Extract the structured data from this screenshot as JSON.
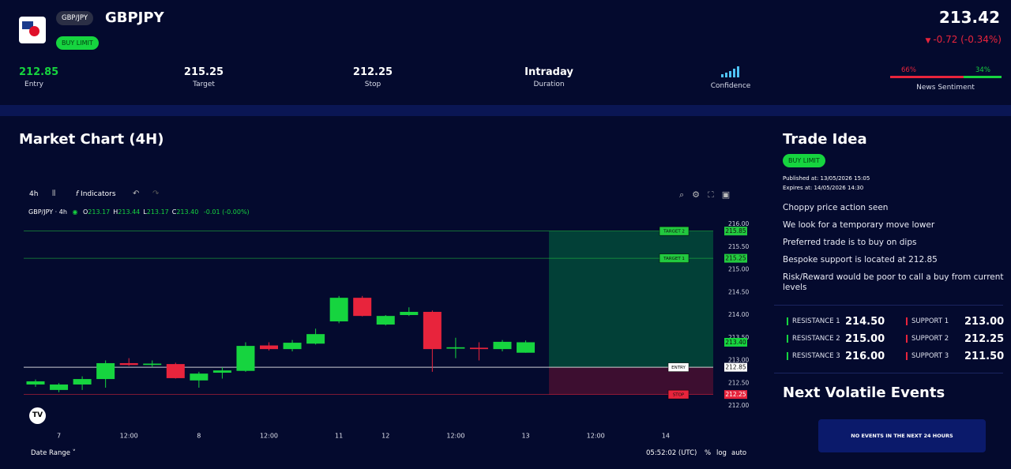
{
  "header": {
    "pair_badge": "GBP/JPY",
    "symbol": "GBPJPY",
    "signal": "BUY LIMIT",
    "price": 213.42,
    "change": "-0.72 (-0.34%)"
  },
  "stats": [
    {
      "value": 212.85,
      "label": "Entry"
    },
    {
      "value": 215.25,
      "label": "Target"
    },
    {
      "value": 212.25,
      "label": "Stop"
    },
    {
      "value": "Intraday",
      "label": "Duration"
    },
    {
      "label": "Confidence"
    }
  ],
  "sentiment": {
    "bearish": {
      "value": 66,
      "label": "66%"
    },
    "bullish": {
      "value": 34,
      "label": "34%"
    },
    "label": "News Sentiment"
  },
  "chart_title": "Market Chart (4H)",
  "toolbar": {
    "interval": "4h",
    "indicators": "Indicators"
  },
  "legend": {
    "symbol": "GBP/JPY · 4h",
    "items": [
      {
        "key": "O",
        "value": "213.17"
      },
      {
        "key": "H",
        "value": "213.44"
      },
      {
        "key": "L",
        "value": "213.17"
      },
      {
        "key": "C",
        "value": "213.40"
      }
    ],
    "change": "-0.01 (-0.00%)"
  },
  "chart_data": {
    "type": "candlestick",
    "open": [
      212.47,
      212.35,
      212.47,
      212.59,
      212.94,
      212.9,
      212.92,
      212.56,
      212.73,
      212.77,
      213.33,
      213.25,
      213.37,
      213.86,
      214.38,
      213.79,
      214.0,
      214.07,
      213.26,
      213.28,
      213.25,
      213.17
    ],
    "high": [
      212.58,
      212.5,
      212.65,
      213.0,
      213.05,
      213.0,
      212.95,
      212.75,
      212.85,
      213.4,
      213.4,
      213.45,
      213.7,
      214.42,
      214.42,
      214.0,
      214.17,
      214.1,
      213.5,
      213.4,
      213.45,
      213.44
    ],
    "low": [
      212.42,
      212.3,
      212.35,
      212.4,
      212.88,
      212.85,
      212.6,
      212.4,
      212.6,
      212.75,
      213.22,
      213.2,
      213.35,
      213.82,
      213.97,
      213.77,
      213.98,
      212.75,
      213.05,
      213.0,
      213.2,
      213.17
    ],
    "close": [
      212.54,
      212.47,
      212.59,
      212.94,
      212.9,
      212.93,
      212.61,
      212.71,
      212.78,
      213.32,
      213.25,
      213.39,
      213.58,
      214.38,
      213.98,
      213.98,
      214.07,
      213.25,
      213.29,
      213.25,
      213.41,
      213.4
    ],
    "xticks": [
      "7",
      "12:00",
      "8",
      "12:00",
      "11",
      "12",
      "12:00",
      "13",
      "12:00",
      "14"
    ],
    "ylim": [
      212,
      216
    ],
    "yticks": [
      {
        "value": 216,
        "label": "216.00"
      },
      {
        "value": 215.5,
        "label": "215.50"
      },
      {
        "value": 215,
        "label": "215.00"
      },
      {
        "value": 214.5,
        "label": "214.50"
      },
      {
        "value": 214,
        "label": "214.00"
      },
      {
        "value": 213.5,
        "label": "213.50"
      },
      {
        "value": 213,
        "label": "213.00"
      },
      {
        "value": 212.5,
        "label": "212.50"
      },
      {
        "value": 212,
        "label": "212.00"
      }
    ],
    "levels": [
      {
        "name": "TARGET 2",
        "value": 215.85,
        "color": "#22c93f"
      },
      {
        "name": "TARGET 1",
        "value": 215.25,
        "color": "#22c93f"
      },
      {
        "name": "ENTRY",
        "value": 212.85,
        "color": "#ffffff"
      },
      {
        "name": "STOP",
        "value": 212.25,
        "color": "#e8243c"
      }
    ],
    "last_price": {
      "value": 213.4,
      "label": "213.40"
    },
    "up_color": "#16d43f",
    "down_color": "#e8243c"
  },
  "footer": {
    "date_range": "Date Range",
    "time": "05:52:02 (UTC)",
    "percent": "%",
    "log": "log",
    "auto": "auto"
  },
  "trade_idea": {
    "title": "Trade Idea",
    "signal": "BUY LIMIT",
    "published": "Published at: 13/05/2026 15:05",
    "expires": "Expires at: 14/05/2026 14:30",
    "points": [
      "Choppy price action seen",
      "We look for a temporary move lower",
      "Preferred trade is to buy on dips",
      "Bespoke support is located at 212.85",
      "Risk/Reward would be poor to call a buy from current levels"
    ]
  },
  "key_levels": {
    "resistance": [
      {
        "label": "RESISTANCE 1",
        "value": "214.50"
      },
      {
        "label": "RESISTANCE 2",
        "value": "215.00"
      },
      {
        "label": "RESISTANCE 3",
        "value": "216.00"
      }
    ],
    "support": [
      {
        "label": "SUPPORT 1",
        "value": "213.00"
      },
      {
        "label": "SUPPORT 2",
        "value": "212.25"
      },
      {
        "label": "SUPPORT 3",
        "value": "211.50"
      }
    ]
  },
  "events": {
    "title": "Next Volatile Events",
    "empty": "NO EVENTS IN THE NEXT 24 HOURS"
  }
}
